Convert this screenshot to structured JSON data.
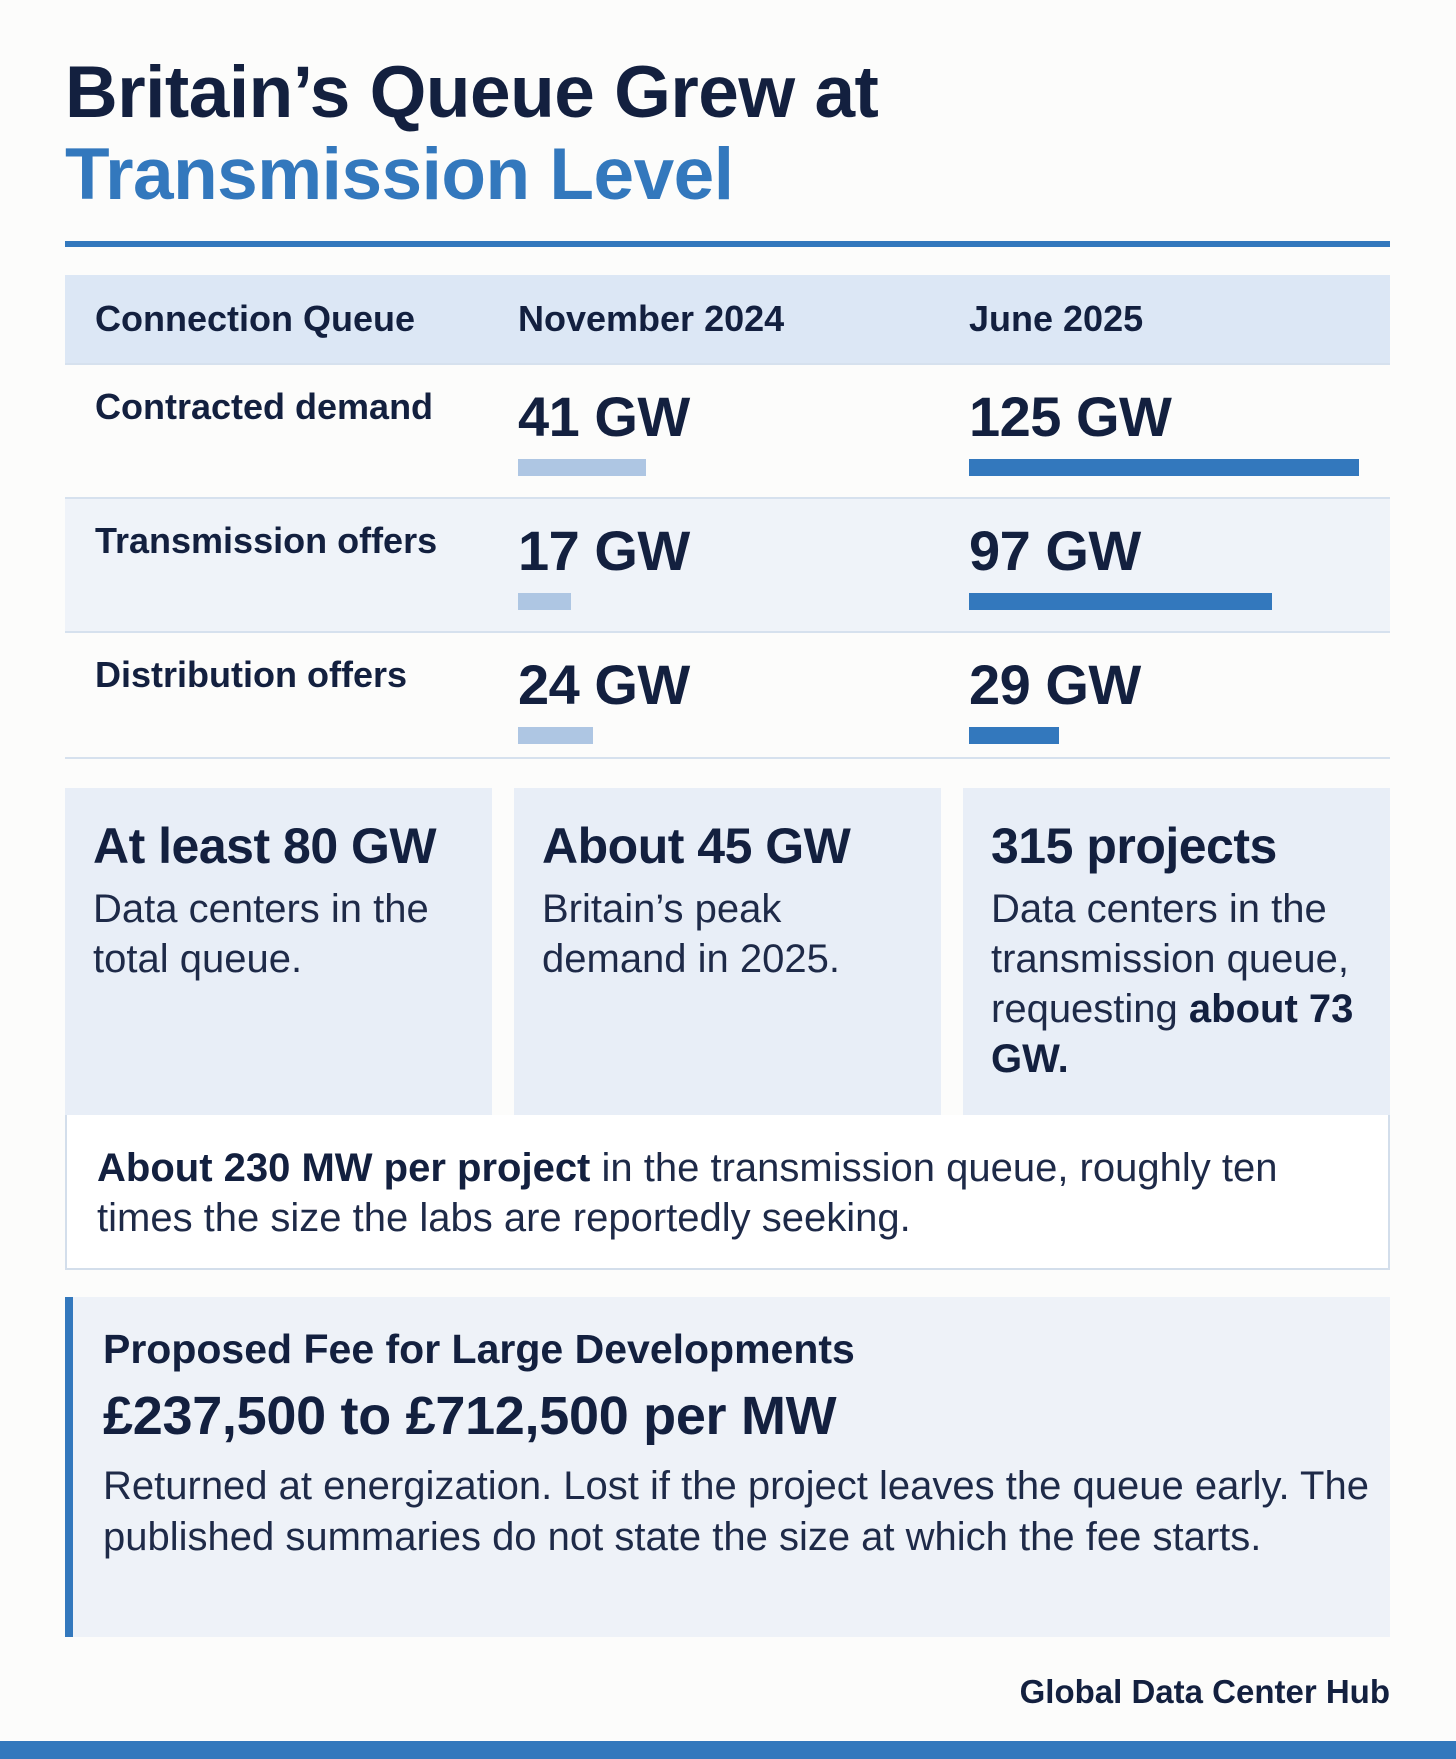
{
  "title": {
    "line1": "Britain’s Queue Grew at",
    "line2": "Transmission Level"
  },
  "table": {
    "headers": [
      "Connection Queue",
      "November 2024",
      "June 2025"
    ],
    "rows": [
      {
        "label": "Contracted demand",
        "nov_2024": "41 GW",
        "jun_2025": "125 GW",
        "nov_value_gw": 41,
        "jun_value_gw": 125
      },
      {
        "label": "Transmission offers",
        "nov_2024": "17 GW",
        "jun_2025": "97 GW",
        "nov_value_gw": 17,
        "jun_value_gw": 97
      },
      {
        "label": "Distribution offers",
        "nov_2024": "24 GW",
        "jun_2025": "29 GW",
        "nov_value_gw": 24,
        "jun_value_gw": 29
      }
    ]
  },
  "cards": [
    {
      "headline": "At least 80 GW",
      "text": "Data centers in the total queue."
    },
    {
      "headline": "About 45 GW",
      "text": "Britain’s peak demand in 2025."
    },
    {
      "headline": "315 projects",
      "text": "Data centers in the transmission queue, requesting ",
      "text_bold": "about 73 GW."
    }
  ],
  "note": {
    "bold": "About 230 MW per project",
    "text": " in the transmission queue, roughly ten times the size the labs are reportedly seeking."
  },
  "fee": {
    "heading": "Proposed Fee for Large Developments",
    "value": "£237,500 to £712,500 per MW",
    "description": "Returned at energization. Lost if the project leaves the queue early. The published summaries do not state the size at which the fee starts."
  },
  "brand": "Global Data Center Hub",
  "colors": {
    "accent": "#3378bd",
    "light_bar": "#aec6e3",
    "navy": "#13203f",
    "header_bg": "#dce7f5",
    "card_bg": "#e8eef7"
  }
}
